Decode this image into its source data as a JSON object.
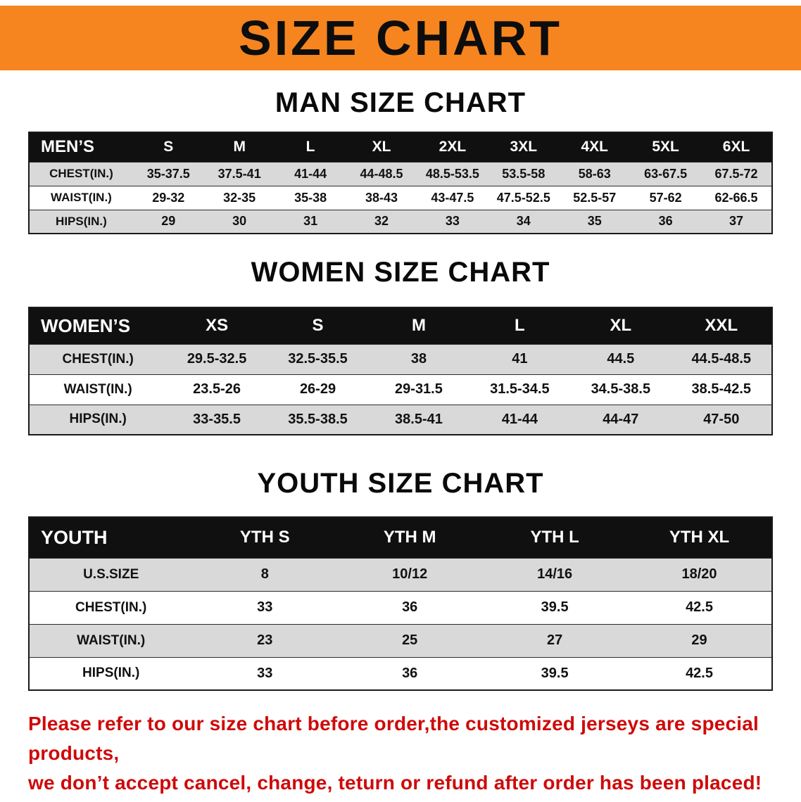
{
  "banner": {
    "title": "SIZE CHART"
  },
  "colors": {
    "banner_bg": "#f6851f",
    "header_bg": "#101010",
    "stripe": "#d9d9d9",
    "notice": "#cf0a0a"
  },
  "sections": [
    {
      "id": "men",
      "heading": "MAN SIZE CHART",
      "columns": [
        "MEN’S",
        "S",
        "M",
        "L",
        "XL",
        "2XL",
        "3XL",
        "4XL",
        "5XL",
        "6XL"
      ],
      "rows": [
        [
          "CHEST(IN.)",
          "35-37.5",
          "37.5-41",
          "41-44",
          "44-48.5",
          "48.5-53.5",
          "53.5-58",
          "58-63",
          "63-67.5",
          "67.5-72"
        ],
        [
          "WAIST(IN.)",
          "29-32",
          "32-35",
          "35-38",
          "38-43",
          "43-47.5",
          "47.5-52.5",
          "52.5-57",
          "57-62",
          "62-66.5"
        ],
        [
          "HIPS(IN.)",
          "29",
          "30",
          "31",
          "32",
          "33",
          "34",
          "35",
          "36",
          "37"
        ]
      ]
    },
    {
      "id": "women",
      "heading": "WOMEN SIZE CHART",
      "columns": [
        "WOMEN’S",
        "XS",
        "S",
        "M",
        "L",
        "XL",
        "XXL"
      ],
      "rows": [
        [
          "CHEST(IN.)",
          "29.5-32.5",
          "32.5-35.5",
          "38",
          "41",
          "44.5",
          "44.5-48.5"
        ],
        [
          "WAIST(IN.)",
          "23.5-26",
          "26-29",
          "29-31.5",
          "31.5-34.5",
          "34.5-38.5",
          "38.5-42.5"
        ],
        [
          "HIPS(IN.)",
          "33-35.5",
          "35.5-38.5",
          "38.5-41",
          "41-44",
          "44-47",
          "47-50"
        ]
      ]
    },
    {
      "id": "youth",
      "heading": "YOUTH SIZE CHART",
      "columns": [
        "YOUTH",
        "YTH S",
        "YTH M",
        "YTH L",
        "YTH XL"
      ],
      "rows": [
        [
          "U.S.SIZE",
          "8",
          "10/12",
          "14/16",
          "18/20"
        ],
        [
          "CHEST(IN.)",
          "33",
          "36",
          "39.5",
          "42.5"
        ],
        [
          "WAIST(IN.)",
          "23",
          "25",
          "27",
          "29"
        ],
        [
          "HIPS(IN.)",
          "33",
          "36",
          "39.5",
          "42.5"
        ]
      ]
    }
  ],
  "notice": {
    "line1": "Please refer to our size chart before order,the customized jerseys are special products,",
    "line2": "we don’t accept cancel, change, teturn or refund after order has been placed!"
  }
}
